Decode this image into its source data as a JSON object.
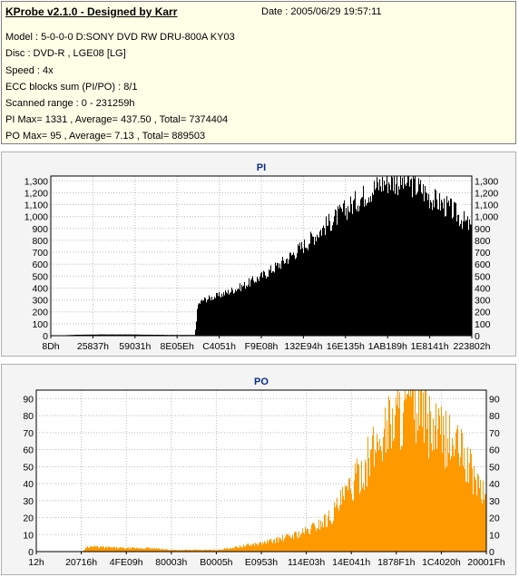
{
  "info": {
    "title": "KProbe v2.1.0 - Designed by Karr",
    "date": "Date : 2005/06/29 19:57:11",
    "lines": [
      "Model : 5-0-0-0 D:SONY    DVD RW DRU-800A  KY03",
      "Disc : DVD-R , LGE08 [LG]",
      "Speed : 4x",
      "ECC blocks sum (PI/PO) : 8/1",
      "Scanned range : 0 - 231259h",
      "PI Max= 1331 , Average= 437.50 , Total= 7374404",
      "PO Max= 95 , Average= 7.13 , Total= 889503"
    ]
  },
  "colors": {
    "pi_bar": "#000000",
    "po_bar": "#ff9900",
    "title": "#0a2c8c",
    "panel_bg": "#ffffe8"
  },
  "chart_data": [
    {
      "type": "bar",
      "title": "PI",
      "xlabel": "",
      "ylabel": "",
      "x_tick_labels": [
        "8Dh",
        "25837h",
        "59031h",
        "8E05Eh",
        "C4051h",
        "F9E08h",
        "132E94h",
        "16E135h",
        "1AB189h",
        "1E8141h",
        "223802h"
      ],
      "y_ticks": [
        0,
        100,
        200,
        300,
        400,
        500,
        600,
        700,
        800,
        900,
        1000,
        1100,
        1200,
        1300
      ],
      "y_tick_labels": [
        "0",
        "100",
        "200",
        "300",
        "400",
        "500",
        "600",
        "700",
        "800",
        "900",
        "1,000",
        "1,100",
        "1,200",
        "1,300"
      ],
      "ylim": [
        0,
        1340
      ],
      "grid": true,
      "envelope_x": [
        0.0,
        0.06,
        0.12,
        0.18,
        0.24,
        0.3,
        0.34,
        0.347,
        0.36,
        0.4,
        0.45,
        0.5,
        0.55,
        0.6,
        0.65,
        0.7,
        0.75,
        0.78,
        0.8,
        0.85,
        0.88,
        0.9,
        0.95,
        1.0
      ],
      "envelope_y": [
        0,
        8,
        10,
        10,
        8,
        6,
        6,
        260,
        300,
        340,
        410,
        500,
        620,
        760,
        920,
        1060,
        1200,
        1270,
        1300,
        1280,
        1230,
        1160,
        1060,
        900
      ]
    },
    {
      "type": "bar",
      "title": "PO",
      "xlabel": "",
      "ylabel": "",
      "x_tick_labels": [
        "12h",
        "20716h",
        "4FE09h",
        "80003h",
        "B0005h",
        "E0953h",
        "114E03h",
        "14E041h",
        "1878F1h",
        "1C4020h",
        "20001Fh"
      ],
      "y_ticks": [
        0,
        10,
        20,
        30,
        40,
        50,
        60,
        70,
        80,
        90
      ],
      "y_tick_labels": [
        "0",
        "10",
        "20",
        "30",
        "40",
        "50",
        "60",
        "70",
        "80",
        "90"
      ],
      "ylim": [
        0,
        95
      ],
      "grid": true,
      "envelope_x": [
        0.0,
        0.1,
        0.11,
        0.2,
        0.25,
        0.3,
        0.4,
        0.45,
        0.5,
        0.55,
        0.6,
        0.65,
        0.7,
        0.75,
        0.78,
        0.82,
        0.85,
        0.88,
        0.9,
        0.94,
        0.97,
        1.0
      ],
      "envelope_y": [
        0,
        0,
        3,
        2,
        2,
        1,
        1,
        3,
        5,
        8,
        12,
        20,
        38,
        60,
        75,
        85,
        86,
        70,
        68,
        60,
        45,
        30
      ]
    }
  ]
}
